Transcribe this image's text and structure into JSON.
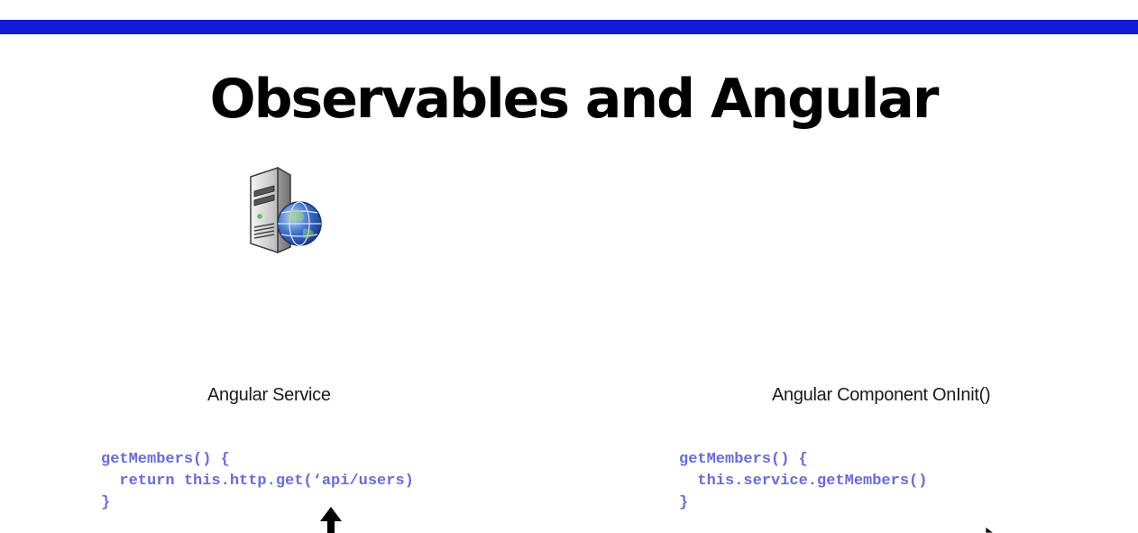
{
  "slide": {
    "title": "Observables and Angular",
    "accent_color": "#1419d6",
    "code_color": "#6a6ad8",
    "server_icon": "server-globe-icon"
  },
  "service": {
    "label": "Angular Service",
    "code_lines": [
      "getMembers() {",
      "  return this.http.get(‘api/users)",
      "}"
    ]
  },
  "component": {
    "label": "Angular Component OnInit()",
    "code_lines": [
      "getMembers() {",
      "  this.service.getMembers()",
      "}"
    ]
  },
  "pointer": {
    "arrow_icon": "arrow-up-icon",
    "cursor_icon": "mouse-cursor-icon"
  }
}
